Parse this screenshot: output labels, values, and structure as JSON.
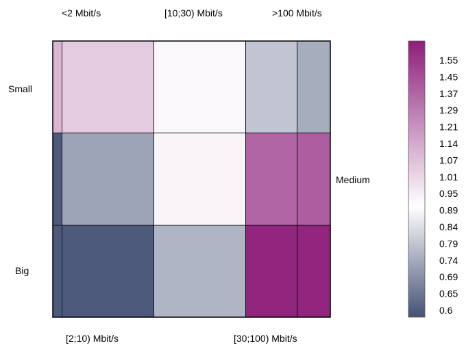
{
  "chart_data": {
    "type": "heatmap",
    "x_categories_top": [
      "<2 Mbit/s",
      "[10;30) Mbit/s",
      ">100 Mbit/s"
    ],
    "x_categories_bottom": [
      "[2;10) Mbit/s",
      "[30;100) Mbit/s"
    ],
    "x_order": [
      "<2 Mbit/s",
      "[2;10) Mbit/s",
      "[10;30) Mbit/s",
      "[30;100) Mbit/s",
      ">100 Mbit/s"
    ],
    "x_widths": [
      0.025,
      0.25,
      0.25,
      0.14,
      0.09
    ],
    "y_categories_left": [
      "Small",
      "Big"
    ],
    "y_categories_right": [
      "Medium"
    ],
    "y_order": [
      "Small",
      "Medium",
      "Big"
    ],
    "values": [
      [
        1.2,
        1.14,
        1.02,
        0.86,
        0.8
      ],
      [
        0.6,
        0.78,
        1.03,
        1.41,
        1.43
      ],
      [
        0.6,
        0.6,
        0.82,
        1.58,
        1.58
      ]
    ],
    "colorbar": {
      "ticks": [
        "1.55",
        "1.45",
        "1.37",
        "1.29",
        "1.21",
        "1.14",
        "1.07",
        "1.01",
        "0.95",
        "0.89",
        "0.84",
        "0.79",
        "0.74",
        "0.69",
        "0.65",
        "0.6"
      ],
      "range": [
        0.58,
        1.6
      ],
      "colors": [
        "#455275",
        "#ffffff",
        "#8e1e7a"
      ]
    }
  }
}
